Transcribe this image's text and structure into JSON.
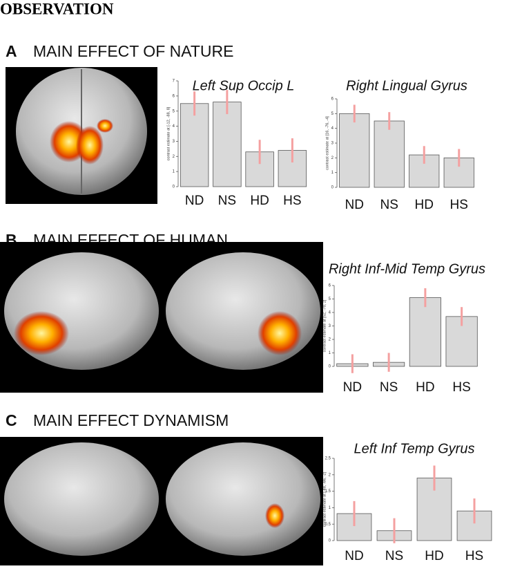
{
  "heading": "OBSERVATION",
  "panels": [
    {
      "letter": "A",
      "title": "MAIN EFFECT OF NATURE"
    },
    {
      "letter": "B",
      "title": "MAIN EFFECT OF HUMAN"
    },
    {
      "letter": "C",
      "title": "MAIN EFFECT DYNAMISM"
    }
  ],
  "chart_data": [
    {
      "type": "bar",
      "title": "Left Sup Occip L",
      "ylabel": "contrast estimate at [-12, -88, 8]",
      "categories": [
        "ND",
        "NS",
        "HD",
        "HS"
      ],
      "values": [
        5.5,
        5.6,
        2.3,
        2.4
      ],
      "errors": [
        0.8,
        0.8,
        0.8,
        0.8
      ],
      "color": "#d9d9d9",
      "error_color": "#f4a0a0",
      "ylim": [
        0,
        7
      ],
      "yticks": [
        0,
        1,
        2,
        3,
        4,
        5,
        6,
        7
      ]
    },
    {
      "type": "bar",
      "title": "Right Lingual Gyrus",
      "ylabel": "contrast estimate at [16, -76, -4]",
      "categories": [
        "ND",
        "NS",
        "HD",
        "HS"
      ],
      "values": [
        5.0,
        4.5,
        2.2,
        2.0
      ],
      "errors": [
        0.6,
        0.6,
        0.6,
        0.6
      ],
      "color": "#d9d9d9",
      "error_color": "#f4a0a0",
      "ylim": [
        0,
        6
      ],
      "yticks": [
        0,
        1,
        2,
        3,
        4,
        5,
        6
      ]
    },
    {
      "type": "bar",
      "title": "Right Inf-Mid Temp Gyrus",
      "ylabel": "contrast estimate at [52, -70, 2]",
      "categories": [
        "ND",
        "NS",
        "HD",
        "HS"
      ],
      "values": [
        0.2,
        0.3,
        5.1,
        3.7
      ],
      "errors": [
        0.7,
        0.7,
        0.7,
        0.7
      ],
      "color": "#d9d9d9",
      "error_color": "#f4a0a0",
      "ylim": [
        0,
        6
      ],
      "yticks": [
        0,
        1,
        2,
        3,
        4,
        5,
        6
      ]
    },
    {
      "type": "bar",
      "title": "Left Inf Temp Gyrus",
      "ylabel": "contrast estimate at [-48, -66, -2]",
      "categories": [
        "ND",
        "NS",
        "HD",
        "HS"
      ],
      "values": [
        0.82,
        0.3,
        1.9,
        0.9
      ],
      "errors": [
        0.38,
        0.38,
        0.38,
        0.38
      ],
      "color": "#d9d9d9",
      "error_color": "#f4a0a0",
      "ylim": [
        0,
        2.5
      ],
      "yticks": [
        0,
        0.5,
        1,
        1.5,
        2,
        2.5
      ]
    }
  ]
}
